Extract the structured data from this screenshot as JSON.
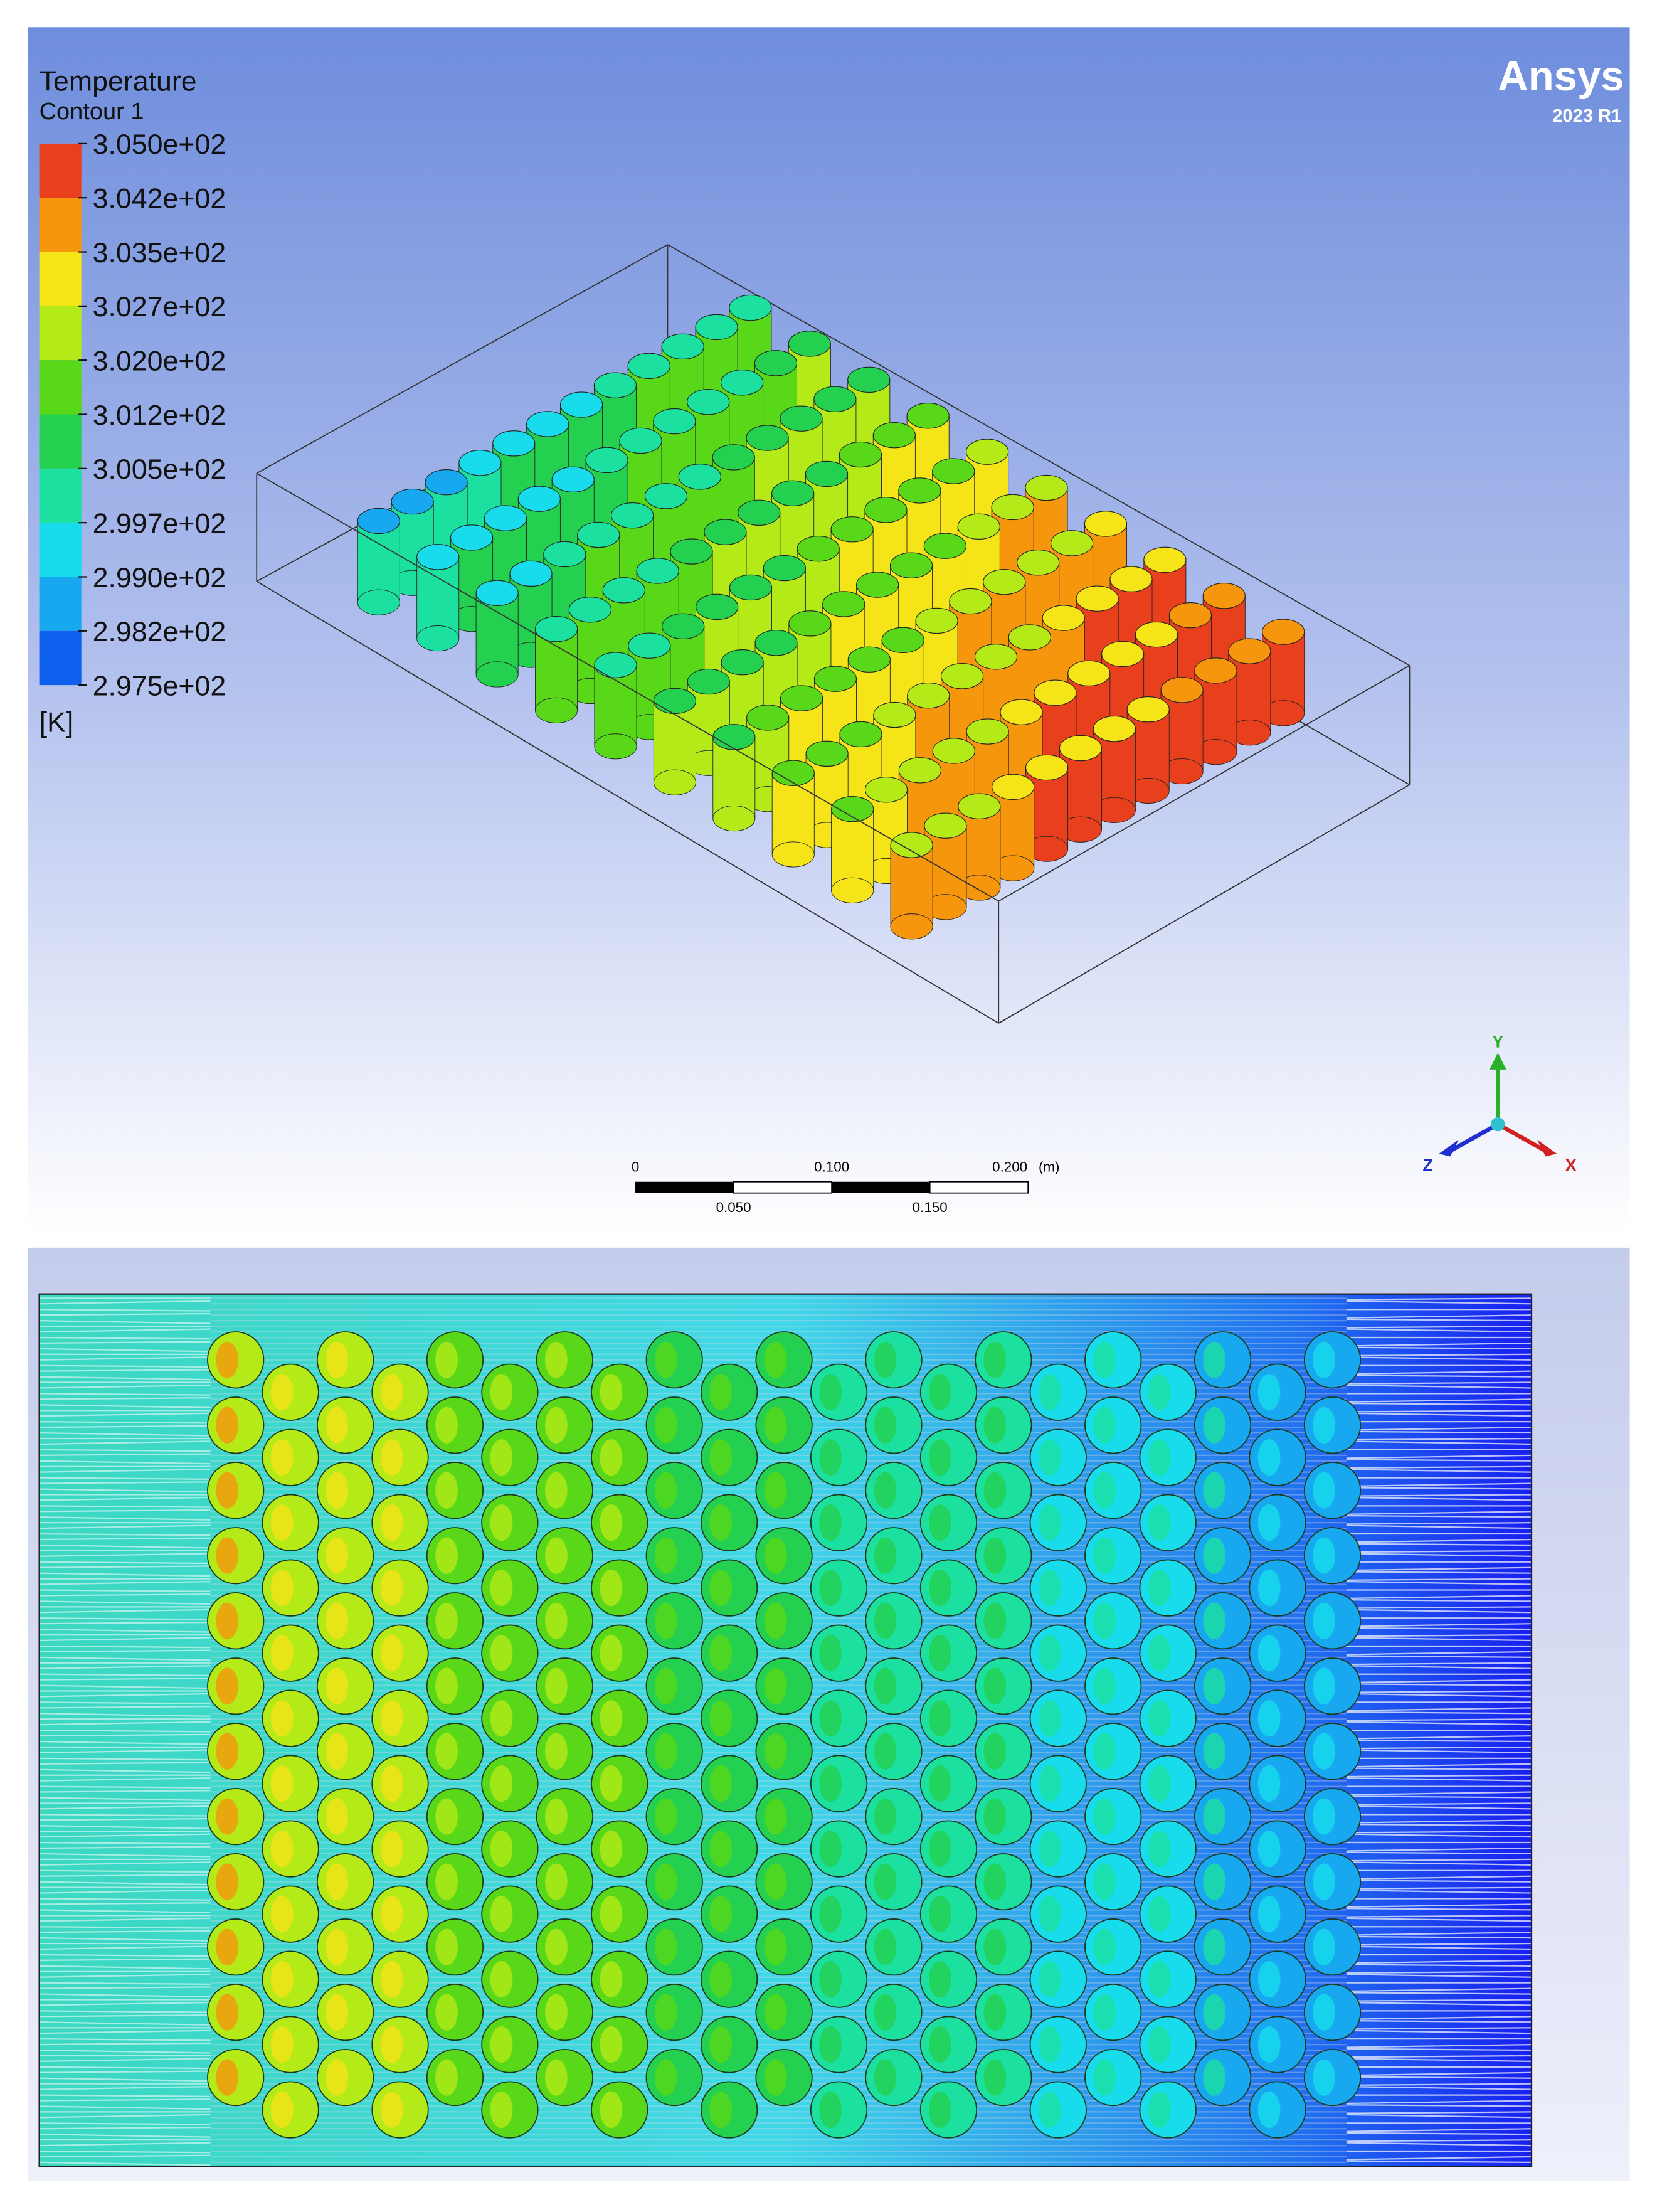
{
  "legend": {
    "title": "Temperature",
    "subtitle": "Contour 1",
    "labels": [
      "3.050e+02",
      "3.042e+02",
      "3.035e+02",
      "3.027e+02",
      "3.020e+02",
      "3.012e+02",
      "3.005e+02",
      "2.997e+02",
      "2.990e+02",
      "2.982e+02",
      "2.975e+02"
    ],
    "colors": [
      "#e8401c",
      "#f5960c",
      "#f4e418",
      "#b4ea18",
      "#58d818",
      "#24d050",
      "#1ce0a0",
      "#18dcec",
      "#18a8f0",
      "#1060f0"
    ],
    "unit": "[K]"
  },
  "logo": {
    "name": "Ansys",
    "version": "2023 R1"
  },
  "scale_bar": {
    "top_labels": [
      "0",
      "0.100",
      "0.200"
    ],
    "unit": "(m)",
    "bottom_labels": [
      "0.050",
      "0.150"
    ]
  },
  "axes": {
    "y": "Y",
    "z": "Z",
    "x": "X"
  }
}
